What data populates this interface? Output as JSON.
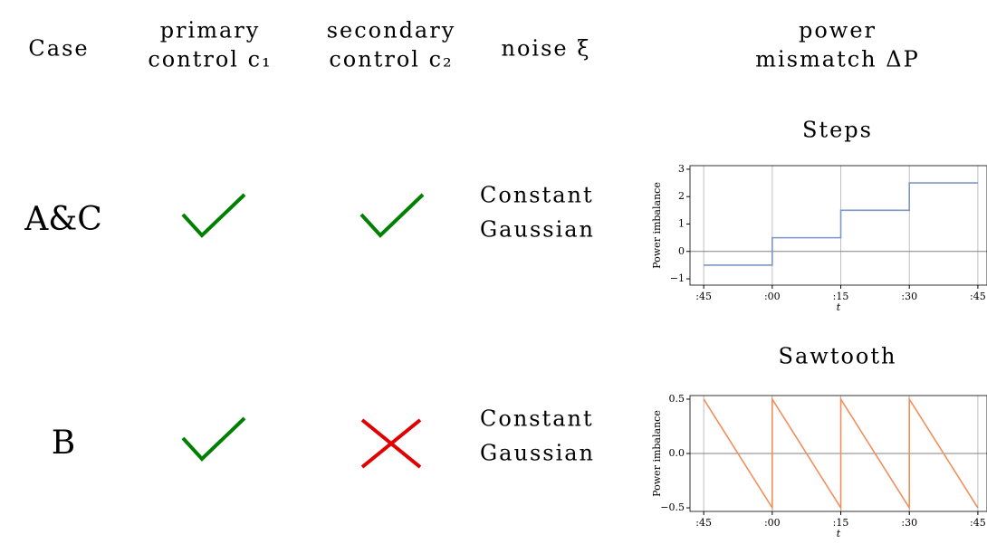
{
  "table": {
    "header": [
      [
        "Case"
      ],
      [
        "primary",
        "control c₁"
      ],
      [
        "secondary",
        "control c₂"
      ],
      [
        "noise ξ"
      ],
      [
        "power",
        "mismatch ΔP"
      ]
    ],
    "rows": [
      {
        "case": "A&C",
        "primary": true,
        "secondary": true,
        "noise": [
          "Constant",
          "Gaussian"
        ]
      },
      {
        "case": "B",
        "primary": true,
        "secondary": false,
        "noise": [
          "Constant",
          "Gaussian"
        ]
      }
    ]
  },
  "chart_data": [
    {
      "type": "line",
      "title": "Steps",
      "ylabel": "Power imbalance",
      "xlabel": "t",
      "x": [
        0,
        15,
        15,
        30,
        30,
        45,
        45,
        60
      ],
      "series": [
        {
          "color": "#7e95c8",
          "values": [
            -0.5,
            -0.5,
            0.5,
            0.5,
            1.5,
            1.5,
            2.5,
            2.5
          ]
        }
      ],
      "xlim": [
        -3,
        62
      ],
      "xticks": [
        {
          "value": 0,
          "label": ":45"
        },
        {
          "value": 15,
          "label": ":00"
        },
        {
          "value": 30,
          "label": ":15"
        },
        {
          "value": 45,
          "label": ":30"
        },
        {
          "value": 60,
          "label": ":45"
        }
      ],
      "ylim": [
        -1.23,
        3.13
      ],
      "yticks": [
        {
          "value": -1,
          "label": "−1"
        },
        0,
        1,
        2,
        3
      ],
      "grid": true
    },
    {
      "type": "line",
      "title": "Sawtooth",
      "ylabel": "Power imbalance",
      "xlabel": "t",
      "x": [
        0,
        15,
        15,
        30,
        30,
        45,
        45,
        60
      ],
      "series": [
        {
          "color": "#f28e5b",
          "values": [
            0.5,
            -0.5,
            0.5,
            -0.5,
            0.5,
            -0.5,
            0.5,
            -0.5
          ]
        }
      ],
      "xlim": [
        -3,
        62
      ],
      "xticks": [
        {
          "value": 0,
          "label": ":45"
        },
        {
          "value": 15,
          "label": ":00"
        },
        {
          "value": 30,
          "label": ":15"
        },
        {
          "value": 45,
          "label": ":30"
        },
        {
          "value": 60,
          "label": ":45"
        }
      ],
      "ylim": [
        -0.533,
        0.533
      ],
      "yticks": [
        {
          "value": -0.5,
          "label": "−0.5"
        },
        {
          "value": 0,
          "label": "0.0"
        },
        0.5
      ],
      "grid": true
    }
  ]
}
